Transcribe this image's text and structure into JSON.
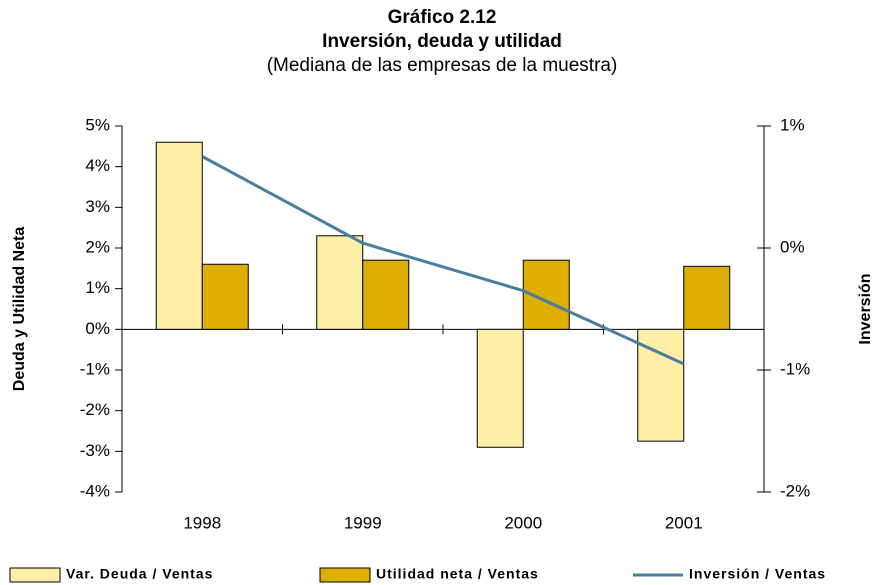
{
  "chart_data": {
    "type": "bar",
    "title": [
      "Gráfico 2.12",
      "Inversión, deuda y utilidad"
    ],
    "subtitle": "(Mediana de las empresas de la muestra)",
    "y_label": "Deuda y Utilidad Neta",
    "y2_label": "Inversión",
    "categories": [
      "1998",
      "1999",
      "2000",
      "2001"
    ],
    "series": [
      {
        "name": "Var. Deuda / Ventas",
        "type": "bar",
        "color": "#FFEFA6",
        "values": [
          4.6,
          2.3,
          -2.9,
          -2.75
        ]
      },
      {
        "name": "Utilidad neta / Ventas",
        "type": "bar",
        "color": "#DDAF00",
        "values": [
          1.6,
          1.7,
          1.7,
          1.55
        ]
      },
      {
        "name": "Inversión / Ventas",
        "type": "line",
        "axis": "y2",
        "color": "#4A7EA0",
        "values": [
          0.75,
          0.04,
          -0.35,
          -0.95
        ]
      }
    ],
    "ylim": [
      -4,
      5
    ],
    "yticks": [
      {
        "value": -4,
        "label": "-4%"
      },
      {
        "value": -3,
        "label": "-3%"
      },
      {
        "value": -2,
        "label": "-2%"
      },
      {
        "value": -1,
        "label": "-1%"
      },
      {
        "value": 0,
        "label": "0%"
      },
      {
        "value": 1,
        "label": "1%"
      },
      {
        "value": 2,
        "label": "2%"
      },
      {
        "value": 3,
        "label": "3%"
      },
      {
        "value": 4,
        "label": "4%"
      },
      {
        "value": 5,
        "label": "5%"
      }
    ],
    "y2lim": [
      -2,
      1
    ],
    "y2ticks": [
      {
        "value": -2,
        "label": "-2%"
      },
      {
        "value": -1,
        "label": "-1%"
      },
      {
        "value": 0,
        "label": "0%"
      },
      {
        "value": 1,
        "label": "1%"
      }
    ],
    "legend": "bottom"
  }
}
